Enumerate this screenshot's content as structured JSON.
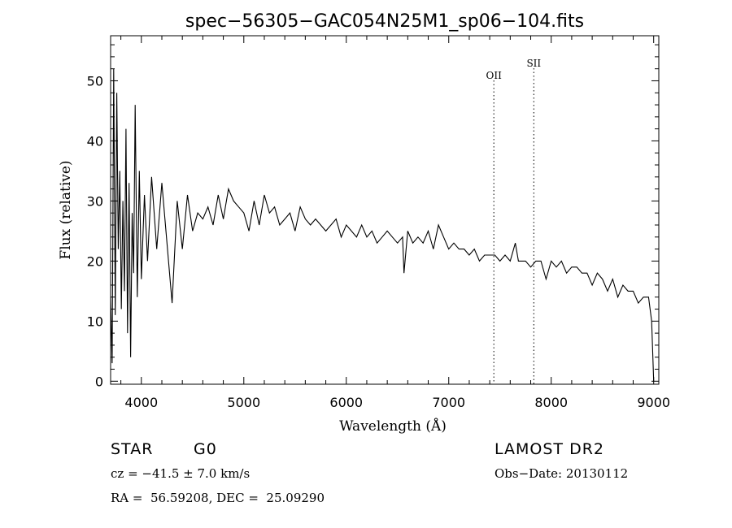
{
  "chart_data": {
    "type": "line",
    "title": "spec−56305−GAC054N25M1_sp06−104.fits",
    "xlabel": "Wavelength (Å)",
    "ylabel": "Flux (relative)",
    "xlim": [
      3700,
      9050
    ],
    "ylim": [
      -0.5,
      57.5
    ],
    "xticks": [
      4000,
      5000,
      6000,
      7000,
      8000,
      9000
    ],
    "yticks": [
      0,
      10,
      20,
      30,
      40,
      50
    ],
    "grid": false,
    "line_markers": [
      {
        "name": "OII",
        "x": 7440
      },
      {
        "name": "SII",
        "x": 7830
      }
    ],
    "series": [
      {
        "name": "flux",
        "x": [
          3700,
          3715,
          3730,
          3745,
          3760,
          3775,
          3790,
          3805,
          3820,
          3835,
          3850,
          3865,
          3880,
          3895,
          3910,
          3925,
          3940,
          3960,
          3980,
          4000,
          4030,
          4060,
          4100,
          4150,
          4200,
          4250,
          4300,
          4350,
          4400,
          4450,
          4500,
          4550,
          4600,
          4650,
          4700,
          4750,
          4800,
          4850,
          4900,
          4950,
          5000,
          5050,
          5100,
          5150,
          5200,
          5250,
          5300,
          5350,
          5400,
          5450,
          5500,
          5550,
          5600,
          5650,
          5700,
          5750,
          5800,
          5850,
          5900,
          5950,
          6000,
          6050,
          6100,
          6150,
          6200,
          6250,
          6300,
          6350,
          6400,
          6450,
          6500,
          6550,
          6563,
          6600,
          6650,
          6700,
          6750,
          6800,
          6850,
          6900,
          6950,
          7000,
          7050,
          7100,
          7150,
          7200,
          7250,
          7300,
          7350,
          7400,
          7450,
          7500,
          7550,
          7600,
          7650,
          7680,
          7700,
          7750,
          7800,
          7850,
          7900,
          7950,
          8000,
          8050,
          8100,
          8150,
          8200,
          8250,
          8300,
          8350,
          8400,
          8450,
          8500,
          8550,
          8600,
          8650,
          8700,
          8750,
          8800,
          8850,
          8900,
          8950,
          8980,
          9000
        ],
        "values": [
          14,
          3,
          52,
          11,
          48,
          22,
          35,
          12,
          30,
          15,
          42,
          8,
          33,
          4,
          28,
          18,
          46,
          14,
          35,
          17,
          31,
          20,
          34,
          22,
          33,
          23,
          13,
          30,
          22,
          31,
          25,
          28,
          27,
          29,
          26,
          31,
          27,
          32,
          30,
          29,
          28,
          25,
          30,
          26,
          31,
          28,
          29,
          26,
          27,
          28,
          25,
          29,
          27,
          26,
          27,
          26,
          25,
          26,
          27,
          24,
          26,
          25,
          24,
          26,
          24,
          25,
          23,
          24,
          25,
          24,
          23,
          24,
          18,
          25,
          23,
          24,
          23,
          25,
          22,
          26,
          24,
          22,
          23,
          22,
          22,
          21,
          22,
          20,
          21,
          21,
          21,
          20,
          21,
          20,
          23,
          20,
          20,
          20,
          19,
          20,
          20,
          17,
          20,
          19,
          20,
          18,
          19,
          19,
          18,
          18,
          16,
          18,
          17,
          15,
          17,
          14,
          16,
          15,
          15,
          13,
          14,
          14,
          10,
          0
        ]
      }
    ]
  },
  "info": {
    "object_class": "STAR",
    "subclass": "G0",
    "redshift": "cz = −41.5 ± 7.0 km/s",
    "coordinates": "RA =  56.59208, DEC =  25.09290",
    "survey": "LAMOST DR2",
    "obs_date": "Obs−Date: 20130112"
  }
}
